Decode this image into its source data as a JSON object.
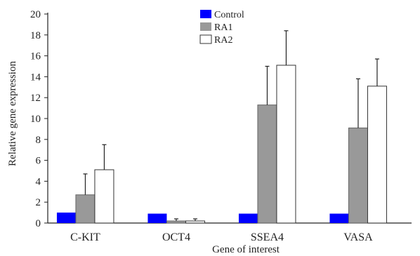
{
  "chart_data": {
    "type": "bar",
    "title": "",
    "xlabel": "Gene of interest",
    "ylabel": "Relative gene expression",
    "ylim": [
      0,
      20
    ],
    "yticks": [
      0,
      2,
      4,
      6,
      8,
      10,
      12,
      14,
      16,
      18,
      20
    ],
    "categories": [
      "C-KIT",
      "OCT4",
      "SSEA4",
      "VASA"
    ],
    "legend_position": "top-center",
    "grid": false,
    "series": [
      {
        "name": "Control",
        "color": "#0000ff",
        "values": [
          1.0,
          0.9,
          0.9,
          0.9
        ],
        "errors": [
          0,
          0,
          0,
          0
        ]
      },
      {
        "name": "RA1",
        "color": "#999999",
        "values": [
          2.7,
          0.2,
          11.3,
          9.1
        ],
        "errors": [
          2.0,
          0.2,
          3.7,
          4.7
        ]
      },
      {
        "name": "RA2",
        "color": "#ffffff",
        "values": [
          5.1,
          0.2,
          15.1,
          13.1
        ],
        "errors": [
          2.4,
          0.2,
          3.3,
          2.6
        ]
      }
    ]
  }
}
